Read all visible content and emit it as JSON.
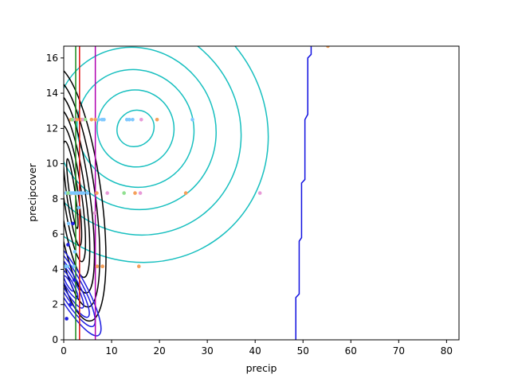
{
  "chart_data": {
    "type": "scatter",
    "xlabel": "precip",
    "ylabel": "precipcover",
    "xlim": [
      0,
      82.6
    ],
    "ylim": [
      0,
      16.67
    ],
    "xticks": [
      0,
      10,
      20,
      30,
      40,
      50,
      60,
      70,
      80
    ],
    "yticks": [
      0,
      2,
      4,
      6,
      8,
      10,
      12,
      14,
      16
    ],
    "grid": false,
    "colors": {
      "kde_cyan": "#17bfbf",
      "kde_black": "#000000",
      "kde_blue": "#1f1fe0",
      "red_line": "#e01010",
      "green_line": "#1a8a1a",
      "magenta_line": "#b000b0",
      "orange_pts": "#f5a05a",
      "skyblue_pts": "#7ec8ff",
      "pink_pts": "#e89ad8",
      "lightgreen_pts": "#90e090",
      "blue_boundary": "#1010e0"
    },
    "vertical_lines": [
      {
        "x": 2.5,
        "color": "#1a8a1a"
      },
      {
        "x": 3.3,
        "color": "#e01010"
      },
      {
        "x": 6.6,
        "color": "#b000b0"
      }
    ],
    "contours": [
      {
        "color": "#17bfbf",
        "cx": 15,
        "cy": 12.0,
        "rx": [
          4,
          8,
          12,
          16.5,
          21.5,
          27
        ],
        "ry": [
          1.0,
          2.2,
          3.4,
          4.7,
          6.2,
          7.8
        ],
        "tilt_deg": 40
      },
      {
        "color": "#000000",
        "cx": 1.8,
        "cy": 8.3,
        "rx": [
          0.6,
          1.2,
          1.9,
          2.7,
          3.6,
          4.7,
          6.0
        ],
        "ry": [
          2.0,
          3.0,
          3.9,
          4.8,
          5.7,
          6.5,
          7.3
        ],
        "tilt_deg": 8
      },
      {
        "color": "#1f1fe0",
        "cx": 1.0,
        "cy": 3.2,
        "rx": [
          0.4,
          0.8,
          1.3,
          1.8,
          2.4,
          3.0
        ],
        "ry": [
          0.5,
          1.0,
          1.6,
          2.2,
          2.8,
          3.4
        ],
        "tilt_deg": 30
      }
    ],
    "boundary": {
      "color": "#1010e0",
      "x": [
        48.5,
        48.5,
        49.2,
        49.2,
        49.7,
        49.7,
        50.4,
        50.4,
        51.0,
        51.0,
        51.7,
        51.7
      ],
      "y": [
        0,
        2.4,
        2.6,
        5.6,
        5.8,
        8.9,
        9.1,
        12.5,
        12.8,
        16.0,
        16.2,
        16.67
      ]
    },
    "series": [
      {
        "color": "#f5a05a",
        "x": [
          1.5,
          2.8,
          3.5,
          5.8,
          6.6,
          8.1,
          14.9,
          19.5,
          25.5,
          6.9,
          7.0,
          8.1,
          15.7,
          55.2,
          1.5,
          3.7,
          2.4
        ],
        "y": [
          12.5,
          12.5,
          8.3,
          12.5,
          12.5,
          4.17,
          8.33,
          12.5,
          8.33,
          8.33,
          4.17,
          4.17,
          4.17,
          16.67,
          8.3,
          12.5,
          8.3
        ]
      },
      {
        "color": "#7ec8ff",
        "x": [
          0.5,
          1.2,
          1.6,
          2.0,
          2.3,
          2.6,
          3.0,
          3.4,
          3.8,
          4.2,
          5.0,
          7.3,
          8.0,
          8.4,
          13.2,
          13.7,
          14.4,
          26.9,
          0.3,
          0.8,
          1.0,
          2.1,
          2.3,
          3.1
        ],
        "y": [
          8.33,
          8.33,
          8.33,
          8.33,
          8.33,
          8.33,
          8.33,
          8.33,
          8.33,
          8.33,
          8.33,
          12.5,
          12.5,
          12.5,
          12.5,
          12.5,
          12.5,
          12.5,
          4.17,
          4.17,
          6.6,
          4.17,
          5.0,
          7.5
        ]
      },
      {
        "color": "#e89ad8",
        "x": [
          16.2,
          41.0,
          16.0,
          9.1,
          4.0,
          2.1,
          6.5
        ],
        "y": [
          12.5,
          8.33,
          8.33,
          8.33,
          12.5,
          12.5,
          7.2
        ]
      },
      {
        "color": "#90e090",
        "x": [
          12.6,
          1.8,
          4.5,
          0.9
        ],
        "y": [
          8.33,
          12.5,
          12.5,
          8.33
        ]
      },
      {
        "color": "#1f1fe0",
        "x": [
          0.6,
          1.4,
          2.2,
          0.9,
          1.9
        ],
        "y": [
          1.2,
          2.0,
          3.4,
          5.4,
          6.6
        ]
      }
    ]
  }
}
